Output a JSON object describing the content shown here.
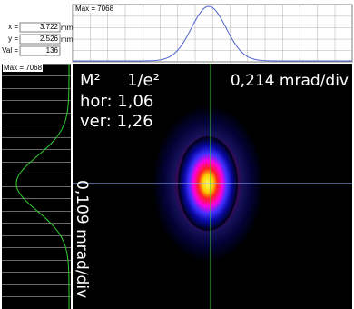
{
  "readout": {
    "x_label": "x =",
    "x_value": "3.722",
    "x_unit": "mm",
    "y_label": "y =",
    "y_value": "2.526",
    "y_unit": "mm",
    "val_label": "Val =",
    "val_value": "136"
  },
  "top_profile": {
    "max_label": "Max = 7068"
  },
  "side_profile": {
    "max_label": "Max = 7068"
  },
  "image": {
    "m2_label": "M²",
    "beam_def": "1/e²",
    "hor": "hor: 1,06",
    "ver": "ver: 1,26",
    "h_scale": "0,214 mrad/div",
    "v_scale": "0,109 mrad/div"
  }
}
